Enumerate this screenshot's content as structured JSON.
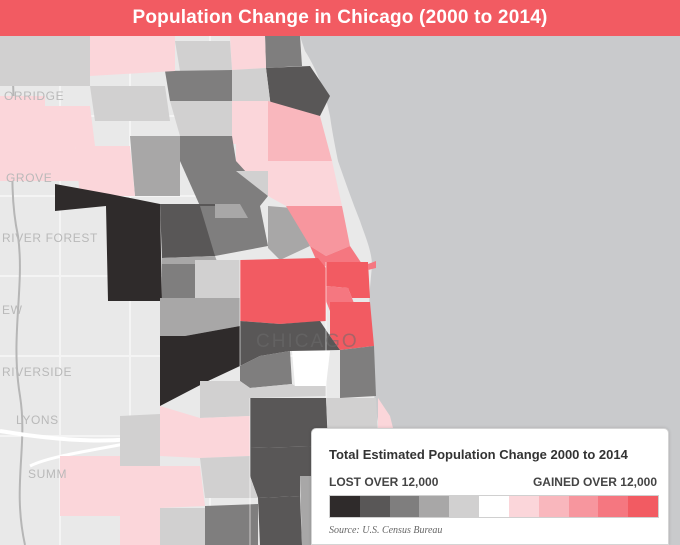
{
  "title": "Population Change in Chicago (2000 to 2014)",
  "place_labels": [
    "ORRIDGE",
    "GROVE",
    "RIVER FOREST",
    "EW",
    "RIVERSIDE",
    "LYONS",
    "SUMM"
  ],
  "city_label": "CHICAGO",
  "legend": {
    "title": "Total Estimated Population Change 2000 to 2014",
    "low_label": "LOST OVER 12,000",
    "high_label": "GAINED OVER 12,000",
    "source": "Source: U.S. Census Bureau",
    "bins": [
      "#2f2b2b",
      "#595757",
      "#7f7e7e",
      "#a8a7a7",
      "#d1d0d0",
      "#ffffff",
      "#fbd6da",
      "#f9b7bd",
      "#f7969e",
      "#f57780",
      "#f25b62"
    ]
  },
  "colors": {
    "accent": "#f25b62",
    "lake": "#c9cacc",
    "land": "#e9e9e9"
  }
}
